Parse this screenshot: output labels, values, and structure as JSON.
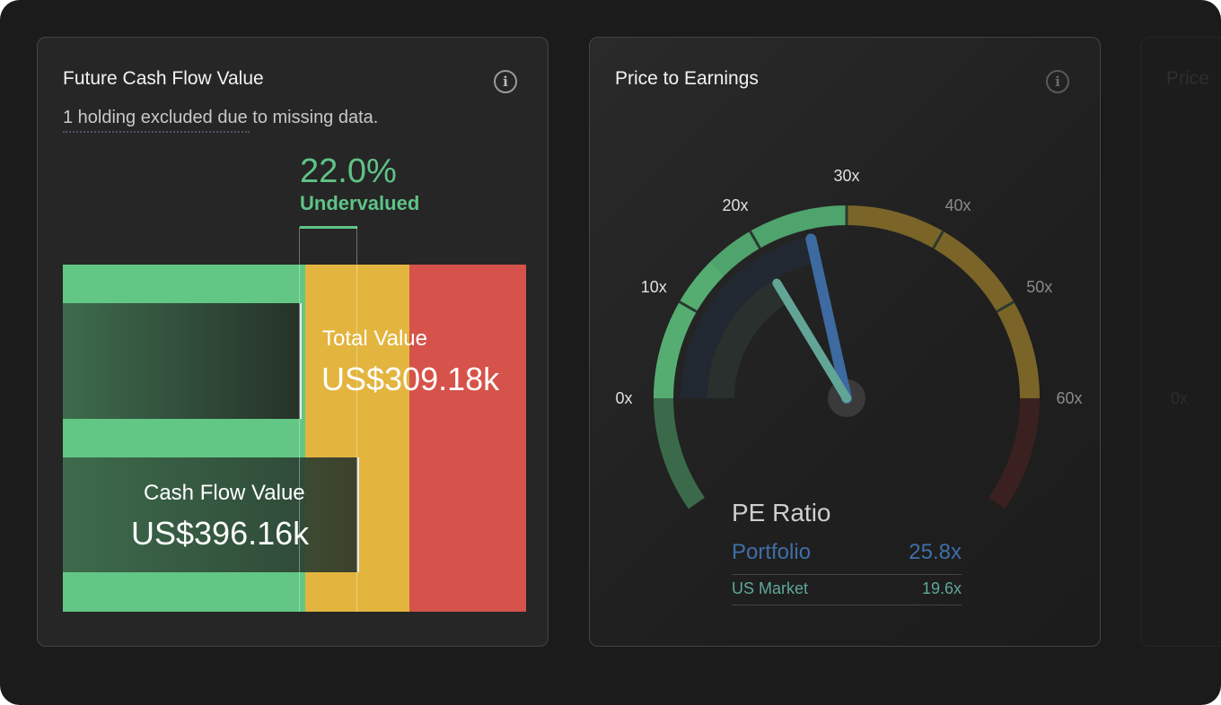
{
  "cards": [
    {
      "title": "Future Cash Flow Value",
      "subtitle": "1 holding excluded due to missing data.",
      "percent": "22.0%",
      "status": "Undervalued",
      "total_value": {
        "label": "Total Value",
        "value": "US$309.18k"
      },
      "cash_flow_value": {
        "label": "Cash Flow Value",
        "value": "US$396.16k"
      },
      "colors": {
        "green": "#62c785",
        "yellow": "#e3b53f",
        "red": "#d5534a",
        "status": "#5ec487"
      }
    },
    {
      "title": "Price to Earnings",
      "legend": {
        "title": "PE Ratio",
        "rows": [
          {
            "label": "Portfolio",
            "value": "25.8x",
            "color": "#3f6fa8"
          },
          {
            "label": "US Market",
            "value": "19.6x",
            "color": "#5fa898"
          }
        ]
      }
    },
    {
      "title": "Price",
      "zero_label": "0x"
    }
  ],
  "chart_data": {
    "type": "gauge",
    "range": [
      0,
      60
    ],
    "ticks": [
      "0x",
      "10x",
      "20x",
      "30x",
      "40x",
      "50x",
      "60x"
    ],
    "tick_values": [
      0,
      10,
      20,
      30,
      40,
      50,
      60
    ],
    "bands": [
      {
        "from": 0,
        "to": 30,
        "color": "#4fa36c"
      },
      {
        "from": 30,
        "to": 60,
        "color": "#7a6428"
      }
    ],
    "needles": [
      {
        "name": "Portfolio",
        "value": 25.8,
        "color": "#3d6aa0"
      },
      {
        "name": "US Market",
        "value": 19.6,
        "color": "#62a597"
      }
    ]
  }
}
